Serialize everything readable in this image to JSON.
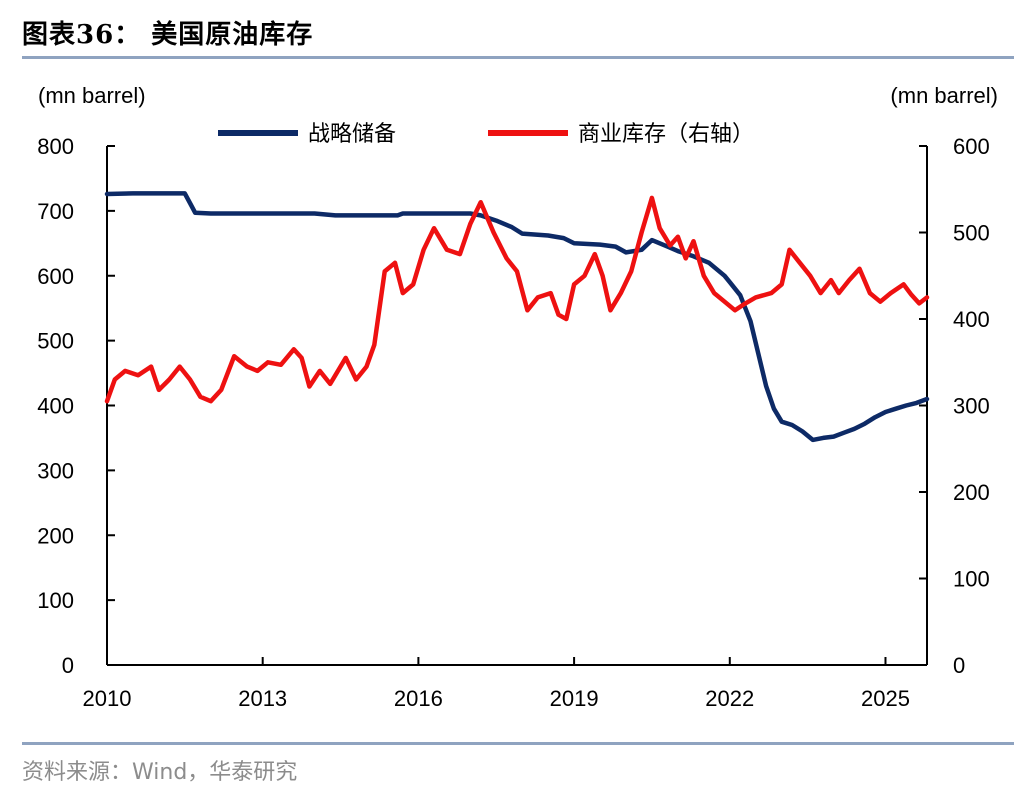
{
  "title": "图表36：  美国原油库存",
  "source": "资料来源：Wind，华泰研究",
  "colors": {
    "spr": "#0d2a66",
    "commercial": "#ee1111",
    "axis": "#000000",
    "rule": "#8fa3c0"
  },
  "chart_data": {
    "type": "line",
    "left_axis": {
      "label": "(mn barrel)",
      "range": [
        0,
        800
      ],
      "ticks": [
        "0",
        "100",
        "200",
        "300",
        "400",
        "500",
        "600",
        "700",
        "800"
      ]
    },
    "right_axis": {
      "label": "(mn barrel)",
      "range": [
        0,
        600
      ],
      "ticks": [
        "0",
        "100",
        "200",
        "300",
        "400",
        "500",
        "600"
      ]
    },
    "x_axis": {
      "range": [
        2010,
        2025.8
      ],
      "ticks": [
        "2010",
        "2013",
        "2016",
        "2019",
        "2022",
        "2025"
      ]
    },
    "legend": {
      "placement": "top"
    },
    "series": [
      {
        "name": "战略储备",
        "axis": "left",
        "color": "#0d2a66",
        "points": [
          [
            2010,
            726
          ],
          [
            2010.5,
            727
          ],
          [
            2011.0,
            727
          ],
          [
            2011.5,
            727
          ],
          [
            2011.6,
            712
          ],
          [
            2011.7,
            697
          ],
          [
            2012.0,
            696
          ],
          [
            2012.5,
            696
          ],
          [
            2013.0,
            696
          ],
          [
            2013.5,
            696
          ],
          [
            2014.0,
            696
          ],
          [
            2014.4,
            693
          ],
          [
            2015.0,
            693
          ],
          [
            2015.6,
            693
          ],
          [
            2015.7,
            696
          ],
          [
            2016.0,
            696
          ],
          [
            2016.5,
            696
          ],
          [
            2017.0,
            696
          ],
          [
            2017.2,
            693
          ],
          [
            2017.5,
            685
          ],
          [
            2017.8,
            675
          ],
          [
            2018.0,
            665
          ],
          [
            2018.5,
            662
          ],
          [
            2018.8,
            658
          ],
          [
            2019.0,
            650
          ],
          [
            2019.5,
            648
          ],
          [
            2019.8,
            645
          ],
          [
            2020.0,
            636
          ],
          [
            2020.3,
            640
          ],
          [
            2020.5,
            655
          ],
          [
            2020.8,
            645
          ],
          [
            2021.0,
            638
          ],
          [
            2021.3,
            630
          ],
          [
            2021.6,
            620
          ],
          [
            2021.9,
            600
          ],
          [
            2022.0,
            590
          ],
          [
            2022.2,
            570
          ],
          [
            2022.4,
            530
          ],
          [
            2022.55,
            480
          ],
          [
            2022.7,
            430
          ],
          [
            2022.85,
            395
          ],
          [
            2023.0,
            375
          ],
          [
            2023.2,
            370
          ],
          [
            2023.4,
            360
          ],
          [
            2023.6,
            347
          ],
          [
            2023.8,
            350
          ],
          [
            2024.0,
            352
          ],
          [
            2024.2,
            358
          ],
          [
            2024.4,
            364
          ],
          [
            2024.6,
            372
          ],
          [
            2024.8,
            382
          ],
          [
            2025.0,
            390
          ],
          [
            2025.2,
            395
          ],
          [
            2025.4,
            400
          ],
          [
            2025.6,
            404
          ],
          [
            2025.8,
            410
          ]
        ]
      },
      {
        "name": "商业库存（右轴）",
        "axis": "right",
        "color": "#ee1111",
        "points": [
          [
            2010.0,
            305
          ],
          [
            2010.15,
            330
          ],
          [
            2010.35,
            340
          ],
          [
            2010.6,
            335
          ],
          [
            2010.85,
            345
          ],
          [
            2011.0,
            318
          ],
          [
            2011.2,
            330
          ],
          [
            2011.4,
            345
          ],
          [
            2011.6,
            330
          ],
          [
            2011.8,
            310
          ],
          [
            2012.0,
            305
          ],
          [
            2012.2,
            318
          ],
          [
            2012.45,
            357
          ],
          [
            2012.7,
            345
          ],
          [
            2012.9,
            340
          ],
          [
            2013.1,
            350
          ],
          [
            2013.35,
            347
          ],
          [
            2013.6,
            365
          ],
          [
            2013.75,
            355
          ],
          [
            2013.9,
            322
          ],
          [
            2014.1,
            340
          ],
          [
            2014.3,
            325
          ],
          [
            2014.6,
            355
          ],
          [
            2014.8,
            330
          ],
          [
            2015.0,
            345
          ],
          [
            2015.15,
            370
          ],
          [
            2015.35,
            455
          ],
          [
            2015.55,
            465
          ],
          [
            2015.7,
            430
          ],
          [
            2015.9,
            440
          ],
          [
            2016.1,
            480
          ],
          [
            2016.3,
            505
          ],
          [
            2016.55,
            480
          ],
          [
            2016.8,
            475
          ],
          [
            2017.0,
            510
          ],
          [
            2017.2,
            535
          ],
          [
            2017.45,
            500
          ],
          [
            2017.7,
            470
          ],
          [
            2017.9,
            455
          ],
          [
            2018.1,
            410
          ],
          [
            2018.3,
            425
          ],
          [
            2018.55,
            430
          ],
          [
            2018.7,
            405
          ],
          [
            2018.85,
            400
          ],
          [
            2019.0,
            440
          ],
          [
            2019.2,
            450
          ],
          [
            2019.4,
            475
          ],
          [
            2019.55,
            450
          ],
          [
            2019.7,
            410
          ],
          [
            2019.9,
            430
          ],
          [
            2020.1,
            455
          ],
          [
            2020.3,
            500
          ],
          [
            2020.5,
            540
          ],
          [
            2020.65,
            505
          ],
          [
            2020.85,
            485
          ],
          [
            2021.0,
            495
          ],
          [
            2021.15,
            470
          ],
          [
            2021.3,
            490
          ],
          [
            2021.5,
            450
          ],
          [
            2021.7,
            430
          ],
          [
            2021.9,
            420
          ],
          [
            2022.1,
            410
          ],
          [
            2022.3,
            418
          ],
          [
            2022.5,
            425
          ],
          [
            2022.8,
            430
          ],
          [
            2023.0,
            440
          ],
          [
            2023.15,
            480
          ],
          [
            2023.35,
            465
          ],
          [
            2023.55,
            450
          ],
          [
            2023.75,
            430
          ],
          [
            2023.95,
            445
          ],
          [
            2024.1,
            430
          ],
          [
            2024.3,
            445
          ],
          [
            2024.5,
            458
          ],
          [
            2024.7,
            430
          ],
          [
            2024.9,
            420
          ],
          [
            2025.1,
            430
          ],
          [
            2025.35,
            440
          ],
          [
            2025.5,
            428
          ],
          [
            2025.65,
            418
          ],
          [
            2025.8,
            425
          ]
        ]
      }
    ]
  }
}
